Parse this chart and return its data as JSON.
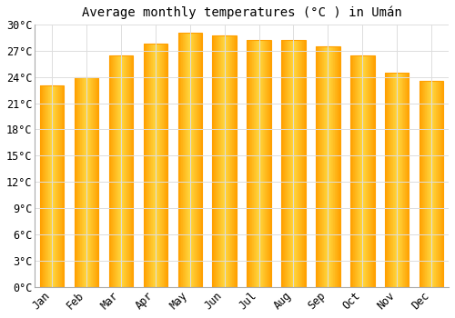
{
  "months": [
    "Jan",
    "Feb",
    "Mar",
    "Apr",
    "May",
    "Jun",
    "Jul",
    "Aug",
    "Sep",
    "Oct",
    "Nov",
    "Dec"
  ],
  "temperatures": [
    23.0,
    24.0,
    26.5,
    27.8,
    29.0,
    28.7,
    28.2,
    28.2,
    27.5,
    26.5,
    24.5,
    23.5
  ],
  "title": "Average monthly temperatures (°C ) in Umán",
  "bar_color_center": "#FFD740",
  "bar_color_edge": "#FFA000",
  "ylabel_ticks": [
    "0°C",
    "3°C",
    "6°C",
    "9°C",
    "12°C",
    "15°C",
    "18°C",
    "21°C",
    "24°C",
    "27°C",
    "30°C"
  ],
  "ytick_values": [
    0,
    3,
    6,
    9,
    12,
    15,
    18,
    21,
    24,
    27,
    30
  ],
  "ylim": [
    0,
    30
  ],
  "background_color": "#ffffff",
  "grid_color": "#dddddd",
  "title_fontsize": 10,
  "tick_fontsize": 8.5
}
